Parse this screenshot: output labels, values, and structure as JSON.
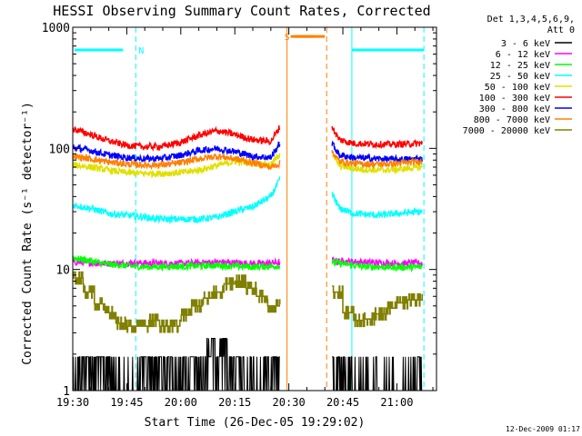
{
  "chart_data": {
    "type": "line",
    "title": "HESSI Observing Summary Count Rates, Corrected",
    "ylabel": "Corrected Count Rate (s⁻¹ detector⁻¹)",
    "xlabel": "Start Time (26-Dec-05 19:29:02)",
    "yscale": "log",
    "ylim": [
      1,
      1000
    ],
    "xlim_minutes": [
      0,
      101
    ],
    "x_unit": "minutes after 19:30",
    "x_ticks": [
      {
        "label": "19:30",
        "t": 0
      },
      {
        "label": "19:45",
        "t": 15
      },
      {
        "label": "20:00",
        "t": 30
      },
      {
        "label": "20:15",
        "t": 45
      },
      {
        "label": "20:30",
        "t": 60
      },
      {
        "label": "20:45",
        "t": 75
      },
      {
        "label": "21:00",
        "t": 90
      }
    ],
    "y_ticks": [
      {
        "label": "1",
        "v": 1
      },
      {
        "label": "10",
        "v": 10
      },
      {
        "label": "100",
        "v": 100
      },
      {
        "label": "1000",
        "v": 1000
      }
    ],
    "legend": {
      "placement": "right",
      "header": [
        "Det 1,3,4,5,6,9,",
        "Att 0"
      ],
      "entries": [
        {
          "label": "3 - 6 keV",
          "color": "#000000"
        },
        {
          "label": "6 - 12 keV",
          "color": "#ff00ff"
        },
        {
          "label": "12 - 25 keV",
          "color": "#00ff00"
        },
        {
          "label": "25 - 50 keV",
          "color": "#00ffff"
        },
        {
          "label": "50 - 100 keV",
          "color": "#e0e000"
        },
        {
          "label": "100 - 300 keV",
          "color": "#ff0000"
        },
        {
          "label": "300 - 800 keV",
          "color": "#0000ff"
        },
        {
          "label": "800 - 7000 keV",
          "color": "#ff8000"
        },
        {
          "label": "7000 - 20000 keV",
          "color": "#808000"
        }
      ]
    },
    "series": [
      {
        "name": "3 - 6 keV",
        "color": "#000000",
        "style": "binary",
        "segments": [
          {
            "x": [
              0,
              5,
              10,
              15,
              20,
              25,
              30,
              35,
              40,
              45,
              50,
              55,
              57.5
            ],
            "y": [
              1.9,
              1.9,
              1.9,
              1,
              1.9,
              1.9,
              1.9,
              1.9,
              2.7,
              1.9,
              1,
              1.9,
              1.9
            ]
          },
          {
            "x": [
              72,
              80,
              90,
              97
            ],
            "y": [
              1.9,
              1,
              1,
              1.9
            ]
          }
        ]
      },
      {
        "name": "6 - 12 keV",
        "color": "#ff00ff",
        "segments": [
          {
            "x": [
              0,
              10,
              20,
              30,
              40,
              50,
              57.5
            ],
            "y": [
              11.5,
              11.2,
              11.3,
              11.2,
              11.5,
              11.2,
              11.4
            ]
          },
          {
            "x": [
              72,
              80,
              90,
              97
            ],
            "y": [
              11.8,
              11.5,
              11.2,
              11.3
            ]
          }
        ]
      },
      {
        "name": "12 - 25 keV",
        "color": "#00ff00",
        "segments": [
          {
            "x": [
              0,
              10,
              20,
              30,
              40,
              50,
              57.5
            ],
            "y": [
              12.5,
              11,
              10.5,
              10.6,
              10.8,
              10.5,
              10.7
            ]
          },
          {
            "x": [
              72,
              80,
              90,
              97
            ],
            "y": [
              11.5,
              10.6,
              10.4,
              10.5
            ]
          }
        ]
      },
      {
        "name": "25 - 50 keV",
        "color": "#00ffff",
        "segments": [
          {
            "x": [
              0,
              5,
              10,
              15,
              20,
              25,
              30,
              35,
              40,
              45,
              50,
              55,
              57.5
            ],
            "y": [
              34,
              32,
              29,
              28,
              27,
              26,
              26,
              26,
              27,
              30,
              33,
              40,
              55
            ]
          },
          {
            "x": [
              72,
              74,
              78,
              85,
              90,
              97
            ],
            "y": [
              42,
              32,
              29,
              28,
              29,
              30
            ]
          }
        ]
      },
      {
        "name": "50 - 100 keV",
        "color": "#e0e000",
        "segments": [
          {
            "x": [
              0,
              5,
              10,
              15,
              20,
              25,
              30,
              35,
              40,
              45,
              50,
              55,
              57.5
            ],
            "y": [
              73,
              70,
              66,
              63,
              62,
              62,
              63,
              66,
              72,
              78,
              76,
              73,
              90
            ]
          },
          {
            "x": [
              72,
              74,
              78,
              85,
              90,
              97
            ],
            "y": [
              90,
              72,
              68,
              66,
              67,
              70
            ]
          }
        ]
      },
      {
        "name": "100 - 300 keV",
        "color": "#ff0000",
        "segments": [
          {
            "x": [
              0,
              5,
              10,
              15,
              20,
              25,
              30,
              35,
              40,
              45,
              50,
              55,
              57.5
            ],
            "y": [
              145,
              130,
              115,
              106,
              103,
              104,
              112,
              128,
              140,
              130,
              118,
              114,
              150
            ]
          },
          {
            "x": [
              72,
              74,
              78,
              85,
              90,
              97
            ],
            "y": [
              150,
              118,
              110,
              108,
              108,
              110
            ]
          }
        ]
      },
      {
        "name": "300 - 800 keV",
        "color": "#0000ff",
        "segments": [
          {
            "x": [
              0,
              5,
              10,
              15,
              20,
              25,
              30,
              35,
              40,
              45,
              50,
              55,
              57.5
            ],
            "y": [
              102,
              96,
              88,
              84,
              82,
              83,
              88,
              96,
              100,
              94,
              86,
              84,
              110
            ]
          },
          {
            "x": [
              72,
              74,
              78,
              85,
              90,
              97
            ],
            "y": [
              110,
              88,
              84,
              82,
              81,
              82
            ]
          }
        ]
      },
      {
        "name": "800 - 7000 keV",
        "color": "#ff8000",
        "segments": [
          {
            "x": [
              0,
              5,
              10,
              15,
              20,
              25,
              30,
              35,
              40,
              45,
              50,
              55,
              57.5
            ],
            "y": [
              86,
              82,
              77,
              74,
              73,
              73,
              76,
              82,
              86,
              82,
              76,
              70,
              75
            ]
          },
          {
            "x": [
              72,
              74,
              78,
              85,
              90,
              97
            ],
            "y": [
              95,
              78,
              75,
              74,
              75,
              78
            ]
          }
        ]
      },
      {
        "name": "7000 - 20000 keV",
        "color": "#808000",
        "style": "step",
        "segments": [
          {
            "x": [
              0,
              3,
              6,
              9,
              12,
              15,
              18,
              21,
              24,
              27,
              30,
              33,
              36,
              39,
              42,
              45,
              48,
              51,
              54,
              57.5
            ],
            "y": [
              8.5,
              6.5,
              5.2,
              4.4,
              3.6,
              3.4,
              3.4,
              3.8,
              3.4,
              3.4,
              4.2,
              5.0,
              5.8,
              6.5,
              7.6,
              8.0,
              7.0,
              6.0,
              5.0,
              4.6
            ]
          },
          {
            "x": [
              72,
              75,
              78,
              81,
              84,
              87,
              90,
              93,
              97
            ],
            "y": [
              6.5,
              4.4,
              3.8,
              3.9,
              4.3,
              4.8,
              5.3,
              5.6,
              5.6
            ]
          }
        ]
      }
    ],
    "markers": {
      "vertical_lines": [
        {
          "t": 0,
          "color": "#00ffff",
          "style": "solid"
        },
        {
          "t": 17.5,
          "color": "#00ffff",
          "style": "dashed"
        },
        {
          "t": 77.5,
          "color": "#00ffff",
          "style": "solid"
        },
        {
          "t": 97.5,
          "color": "#00ffff",
          "style": "dashed"
        },
        {
          "t": 59.5,
          "color": "#ff8000",
          "style": "solid"
        },
        {
          "t": 70.5,
          "color": "#ff8000",
          "style": "dashed"
        }
      ],
      "horizontal_bars": [
        {
          "t0": 0.5,
          "t1": 17.5,
          "value": 650,
          "color": "#00ffff",
          "label": "N"
        },
        {
          "t0": 77.5,
          "t1": 97.5,
          "value": 650,
          "color": "#00ffff",
          "label": ""
        },
        {
          "t0": 60.5,
          "t1": 70.5,
          "value": 840,
          "color": "#ff8000",
          "label": "S"
        }
      ]
    }
  },
  "footer": {
    "stamp": "12-Dec-2009 01:17"
  }
}
